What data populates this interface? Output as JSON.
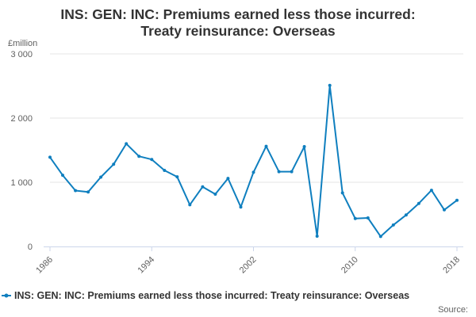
{
  "chart_data": {
    "type": "line",
    "title_lines": [
      "INS: GEN: INC: Premiums earned less those incurred:",
      "Treaty reinsurance: Overseas"
    ],
    "ylabel": "£million",
    "ylim": [
      0,
      3000
    ],
    "yticks": [
      0,
      1000,
      2000,
      3000
    ],
    "ytick_labels": [
      "0",
      "1 000",
      "2 000",
      "3 000"
    ],
    "xlim": [
      1986,
      2018
    ],
    "xticks": [
      1986,
      1994,
      2002,
      2010,
      2018
    ],
    "xtick_labels": [
      "1986",
      "1994",
      "2002",
      "2010",
      "2018"
    ],
    "grid": true,
    "legend_position": "bottom",
    "series": [
      {
        "name": "INS: GEN: INC: Premiums earned less those incurred: Treaty reinsurance: Overseas",
        "color": "#0f7fbf",
        "x": [
          1986,
          1987,
          1988,
          1989,
          1990,
          1991,
          1992,
          1993,
          1994,
          1995,
          1996,
          1997,
          1998,
          1999,
          2000,
          2001,
          2002,
          2003,
          2004,
          2005,
          2006,
          2007,
          2008,
          2009,
          2010,
          2011,
          2012,
          2013,
          2014,
          2015,
          2016,
          2017,
          2018
        ],
        "values": [
          1390,
          1110,
          870,
          850,
          1080,
          1280,
          1600,
          1405,
          1355,
          1185,
          1085,
          650,
          930,
          815,
          1060,
          615,
          1155,
          1560,
          1165,
          1165,
          1555,
          160,
          2510,
          835,
          435,
          445,
          155,
          335,
          490,
          670,
          875,
          570,
          720
        ]
      }
    ]
  },
  "source_label": "Source:"
}
